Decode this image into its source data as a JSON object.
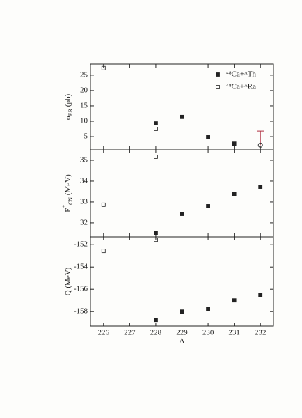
{
  "chart_data": [
    {
      "type": "scatter",
      "ylabel": {
        "main": "σ",
        "sub": "ER",
        "unit": " (pb)"
      },
      "xlim": [
        225.5,
        232.5
      ],
      "xticks": [
        226,
        227,
        228,
        229,
        230,
        231,
        232
      ],
      "ylim": [
        0.7,
        28.6
      ],
      "yticks": [
        5,
        10,
        15,
        20,
        25
      ],
      "legend": "upper right",
      "series": [
        {
          "name": "⁴⁸Ca+ᴬTh",
          "color": "#222222",
          "marker": "filled-square",
          "x": [
            228,
            229,
            230,
            231
          ],
          "values": [
            9.3,
            11.4,
            4.8,
            2.7
          ]
        },
        {
          "name": "⁴⁸Ca+ᴬRa",
          "color": "#222222",
          "marker": "open-square",
          "x": [
            226,
            228
          ],
          "values": [
            27.3,
            7.5
          ]
        }
      ],
      "limit": {
        "x": 232,
        "y": 2.2,
        "err_high": 6.8,
        "color": "#333333",
        "bar_color": "#b03040"
      }
    },
    {
      "type": "scatter",
      "ylabel": {
        "main": "E",
        "sup": "*",
        "sub": "CN",
        "unit": " (MeV)"
      },
      "xlim": [
        225.5,
        232.5
      ],
      "xticks": [
        226,
        227,
        228,
        229,
        230,
        231,
        232
      ],
      "ylim": [
        31.33,
        35.5
      ],
      "yticks": [
        32,
        33,
        34,
        35
      ],
      "series": [
        {
          "name": "⁴⁸Ca+ᴬTh",
          "color": "#222222",
          "marker": "filled-square",
          "x": [
            228,
            229,
            230,
            231,
            232
          ],
          "values": [
            31.5,
            32.43,
            32.8,
            33.37,
            33.73
          ]
        },
        {
          "name": "⁴⁸Ca+ᴬRa",
          "color": "#222222",
          "marker": "open-square",
          "x": [
            226,
            228
          ],
          "values": [
            32.87,
            35.17
          ]
        }
      ]
    },
    {
      "type": "scatter",
      "ylabel": {
        "main": "Q",
        "unit": " (MeV)"
      },
      "xlabel": "A",
      "xlim": [
        225.5,
        232.5
      ],
      "xticks": [
        226,
        227,
        228,
        229,
        230,
        231,
        232
      ],
      "ylim": [
        -159.3,
        -151.3
      ],
      "yticks": [
        -158,
        -156,
        -154,
        -152
      ],
      "series": [
        {
          "name": "⁴⁸Ca+ᴬTh",
          "color": "#222222",
          "marker": "filled-square",
          "x": [
            228,
            229,
            230,
            231,
            232
          ],
          "values": [
            -158.75,
            -158.0,
            -157.75,
            -157.0,
            -156.5
          ]
        },
        {
          "name": "⁴⁸Ca+ᴬRa",
          "color": "#222222",
          "marker": "open-square",
          "x": [
            226,
            228
          ],
          "values": [
            -152.56,
            -151.56
          ]
        }
      ]
    }
  ]
}
